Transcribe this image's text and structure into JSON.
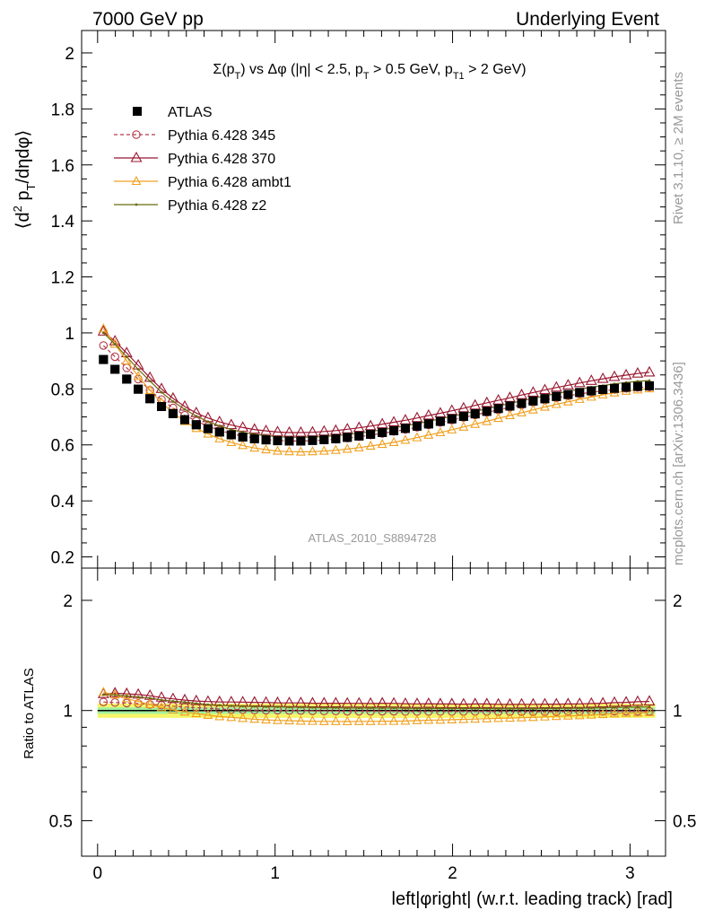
{
  "header": {
    "left": "7000 GeV pp",
    "right": "Underlying Event"
  },
  "side_labels": {
    "rivet": "Rivet 3.1.10, ≥ 2M events",
    "mcplots": "mcplots.cern.ch [arXiv:1306.3436]"
  },
  "colors": {
    "atlas": "#000000",
    "p345": "#b5394a",
    "p370": "#9a1830",
    "ambt1": "#f0a020",
    "z2": "#6b6b10",
    "band_inner": "#f6f56a",
    "band_outer": "#9ff09f"
  },
  "chart_data": [
    {
      "type": "scatter",
      "title": "Σ(p_T) vs Δφ (|η| < 2.5, p_T > 0.5 GeV, p_T1 > 2 GeV)",
      "ylabel": "⟨d² p_T/dηdφ⟩",
      "xlabel": "left|φright| (w.r.t. leading track) [rad]",
      "watermark": "ATLAS_2010_S8894728",
      "xlim": [
        -0.09,
        3.2
      ],
      "ylim": [
        0.16,
        2.08
      ],
      "yticks": [
        0.2,
        0.4,
        0.6,
        0.8,
        1,
        1.2,
        1.4,
        1.6,
        1.8,
        2
      ],
      "xticks": [
        0,
        1,
        2,
        3
      ],
      "legend_position": "top-left",
      "x": [
        0.033,
        0.098,
        0.164,
        0.229,
        0.295,
        0.36,
        0.425,
        0.491,
        0.556,
        0.622,
        0.687,
        0.753,
        0.818,
        0.884,
        0.949,
        1.014,
        1.08,
        1.145,
        1.211,
        1.276,
        1.342,
        1.407,
        1.473,
        1.538,
        1.604,
        1.669,
        1.734,
        1.8,
        1.865,
        1.931,
        1.996,
        2.062,
        2.127,
        2.193,
        2.258,
        2.323,
        2.389,
        2.454,
        2.52,
        2.585,
        2.651,
        2.716,
        2.782,
        2.847,
        2.912,
        2.978,
        3.043,
        3.109
      ],
      "series": [
        {
          "name": "ATLAS",
          "marker": "square",
          "values": [
            0.905,
            0.87,
            0.835,
            0.799,
            0.765,
            0.737,
            0.712,
            0.69,
            0.672,
            0.658,
            0.646,
            0.636,
            0.628,
            0.622,
            0.618,
            0.615,
            0.614,
            0.614,
            0.616,
            0.619,
            0.622,
            0.627,
            0.632,
            0.638,
            0.644,
            0.651,
            0.659,
            0.667,
            0.675,
            0.684,
            0.693,
            0.702,
            0.711,
            0.72,
            0.73,
            0.739,
            0.748,
            0.757,
            0.765,
            0.773,
            0.78,
            0.787,
            0.793,
            0.798,
            0.802,
            0.806,
            0.809,
            0.811
          ]
        },
        {
          "name": "Pythia 6.428 345",
          "marker": "circle",
          "values": [
            0.955,
            0.915,
            0.875,
            0.835,
            0.795,
            0.762,
            0.732,
            0.706,
            0.685,
            0.667,
            0.652,
            0.64,
            0.631,
            0.624,
            0.619,
            0.616,
            0.614,
            0.614,
            0.615,
            0.617,
            0.62,
            0.624,
            0.629,
            0.635,
            0.641,
            0.648,
            0.655,
            0.663,
            0.671,
            0.68,
            0.689,
            0.698,
            0.707,
            0.716,
            0.725,
            0.734,
            0.743,
            0.752,
            0.76,
            0.768,
            0.775,
            0.782,
            0.788,
            0.793,
            0.798,
            0.802,
            0.805,
            0.807
          ]
        },
        {
          "name": "Pythia 6.428 370",
          "marker": "triangle",
          "values": [
            1.005,
            0.97,
            0.928,
            0.884,
            0.84,
            0.8,
            0.766,
            0.737,
            0.714,
            0.696,
            0.682,
            0.671,
            0.662,
            0.655,
            0.65,
            0.646,
            0.644,
            0.644,
            0.645,
            0.648,
            0.651,
            0.656,
            0.661,
            0.667,
            0.674,
            0.681,
            0.688,
            0.696,
            0.705,
            0.713,
            0.722,
            0.731,
            0.741,
            0.75,
            0.759,
            0.768,
            0.778,
            0.787,
            0.796,
            0.805,
            0.813,
            0.821,
            0.829,
            0.836,
            0.843,
            0.849,
            0.855,
            0.859
          ]
        },
        {
          "name": "Pythia 6.428 ambt1",
          "marker": "triangle-open",
          "values": [
            1.015,
            0.96,
            0.9,
            0.845,
            0.795,
            0.751,
            0.715,
            0.684,
            0.659,
            0.639,
            0.622,
            0.609,
            0.598,
            0.589,
            0.583,
            0.578,
            0.576,
            0.575,
            0.576,
            0.578,
            0.581,
            0.585,
            0.59,
            0.596,
            0.602,
            0.609,
            0.617,
            0.626,
            0.635,
            0.644,
            0.654,
            0.664,
            0.674,
            0.684,
            0.695,
            0.705,
            0.715,
            0.725,
            0.735,
            0.745,
            0.754,
            0.763,
            0.771,
            0.779,
            0.786,
            0.792,
            0.797,
            0.801
          ]
        },
        {
          "name": "Pythia 6.428 z2",
          "marker": "dot",
          "values": [
            1.0,
            0.96,
            0.915,
            0.87,
            0.828,
            0.788,
            0.755,
            0.727,
            0.703,
            0.683,
            0.668,
            0.655,
            0.645,
            0.638,
            0.633,
            0.629,
            0.627,
            0.627,
            0.628,
            0.63,
            0.633,
            0.637,
            0.642,
            0.648,
            0.654,
            0.661,
            0.668,
            0.676,
            0.684,
            0.693,
            0.702,
            0.711,
            0.72,
            0.729,
            0.739,
            0.748,
            0.757,
            0.766,
            0.775,
            0.783,
            0.791,
            0.799,
            0.806,
            0.812,
            0.818,
            0.823,
            0.827,
            0.83
          ]
        }
      ]
    },
    {
      "type": "scatter",
      "ylabel": "Ratio to ATLAS",
      "ylim": [
        0.4,
        2.45
      ],
      "scale": "log",
      "yticks": [
        0.5,
        1,
        2
      ],
      "xticks": [
        0,
        1,
        2,
        3
      ],
      "band_inner_halfwidth": 0.02,
      "band_outer_halfwidth": 0.045,
      "series": [
        {
          "name": "Pythia 6.428 345",
          "values": [
            1.055,
            1.052,
            1.048,
            1.045,
            1.039,
            1.034,
            1.028,
            1.023,
            1.019,
            1.014,
            1.009,
            1.006,
            1.005,
            1.003,
            1.002,
            1.002,
            1.0,
            1.0,
            0.998,
            0.997,
            0.997,
            0.995,
            0.995,
            0.995,
            0.995,
            0.995,
            0.994,
            0.994,
            0.994,
            0.994,
            0.994,
            0.994,
            0.994,
            0.994,
            0.993,
            0.993,
            0.993,
            0.993,
            0.993,
            0.993,
            0.994,
            0.994,
            0.994,
            0.994,
            0.995,
            0.995,
            0.995,
            0.995
          ]
        },
        {
          "name": "Pythia 6.428 370",
          "values": [
            1.11,
            1.115,
            1.111,
            1.106,
            1.098,
            1.085,
            1.076,
            1.068,
            1.062,
            1.058,
            1.056,
            1.055,
            1.054,
            1.053,
            1.052,
            1.05,
            1.049,
            1.049,
            1.047,
            1.047,
            1.047,
            1.046,
            1.046,
            1.045,
            1.047,
            1.046,
            1.044,
            1.043,
            1.044,
            1.042,
            1.042,
            1.041,
            1.042,
            1.042,
            1.04,
            1.039,
            1.04,
            1.04,
            1.041,
            1.041,
            1.042,
            1.043,
            1.045,
            1.047,
            1.051,
            1.053,
            1.057,
            1.059
          ]
        },
        {
          "name": "Pythia 6.428 ambt1",
          "values": [
            1.122,
            1.103,
            1.078,
            1.058,
            1.039,
            1.019,
            1.004,
            0.991,
            0.981,
            0.971,
            0.963,
            0.958,
            0.952,
            0.947,
            0.943,
            0.94,
            0.938,
            0.936,
            0.935,
            0.934,
            0.934,
            0.933,
            0.934,
            0.934,
            0.935,
            0.935,
            0.936,
            0.939,
            0.941,
            0.942,
            0.944,
            0.946,
            0.948,
            0.95,
            0.952,
            0.954,
            0.956,
            0.958,
            0.961,
            0.964,
            0.967,
            0.969,
            0.972,
            0.976,
            0.98,
            0.983,
            0.985,
            0.988
          ]
        },
        {
          "name": "Pythia 6.428 z2",
          "values": [
            1.105,
            1.103,
            1.096,
            1.089,
            1.082,
            1.069,
            1.06,
            1.054,
            1.046,
            1.038,
            1.034,
            1.03,
            1.027,
            1.026,
            1.024,
            1.023,
            1.021,
            1.021,
            1.019,
            1.018,
            1.018,
            1.016,
            1.016,
            1.016,
            1.016,
            1.016,
            1.014,
            1.013,
            1.013,
            1.013,
            1.013,
            1.013,
            1.013,
            1.013,
            1.012,
            1.012,
            1.012,
            1.012,
            1.013,
            1.013,
            1.014,
            1.015,
            1.016,
            1.018,
            1.02,
            1.021,
            1.022,
            1.023
          ]
        }
      ]
    }
  ]
}
